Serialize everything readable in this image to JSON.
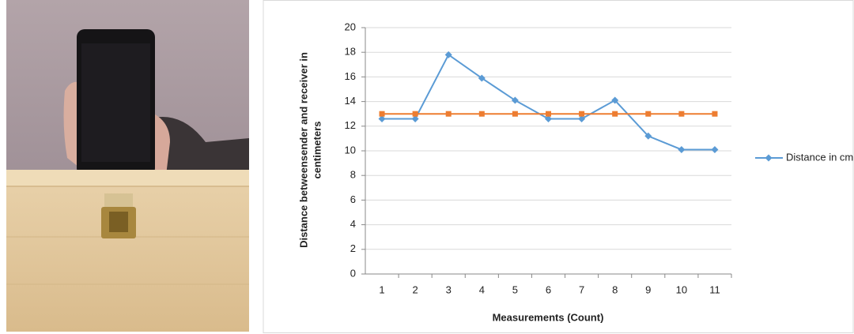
{
  "chart_data": {
    "type": "line",
    "x_label": "Measurements (Count)",
    "y_label": [
      "Distance betweensender and receiver in",
      "centimeters"
    ],
    "categories": [
      "1",
      "2",
      "3",
      "4",
      "5",
      "6",
      "7",
      "8",
      "9",
      "10",
      "11"
    ],
    "series": [
      {
        "name": "Distance in cm",
        "color": "#5b9bd5",
        "marker": "diamond",
        "values": [
          12.6,
          12.6,
          17.8,
          15.9,
          14.1,
          12.6,
          12.6,
          14.1,
          11.2,
          10.1,
          10.1
        ]
      },
      {
        "color": "#ed7d31",
        "marker": "square",
        "values": [
          13,
          13,
          13,
          13,
          13,
          13,
          13,
          13,
          13,
          13,
          13
        ]
      }
    ],
    "ylim": [
      0,
      20
    ],
    "yticks": [
      0,
      2,
      4,
      6,
      8,
      10,
      12,
      14,
      16,
      18,
      20
    ],
    "grid": true,
    "legend": "right"
  }
}
